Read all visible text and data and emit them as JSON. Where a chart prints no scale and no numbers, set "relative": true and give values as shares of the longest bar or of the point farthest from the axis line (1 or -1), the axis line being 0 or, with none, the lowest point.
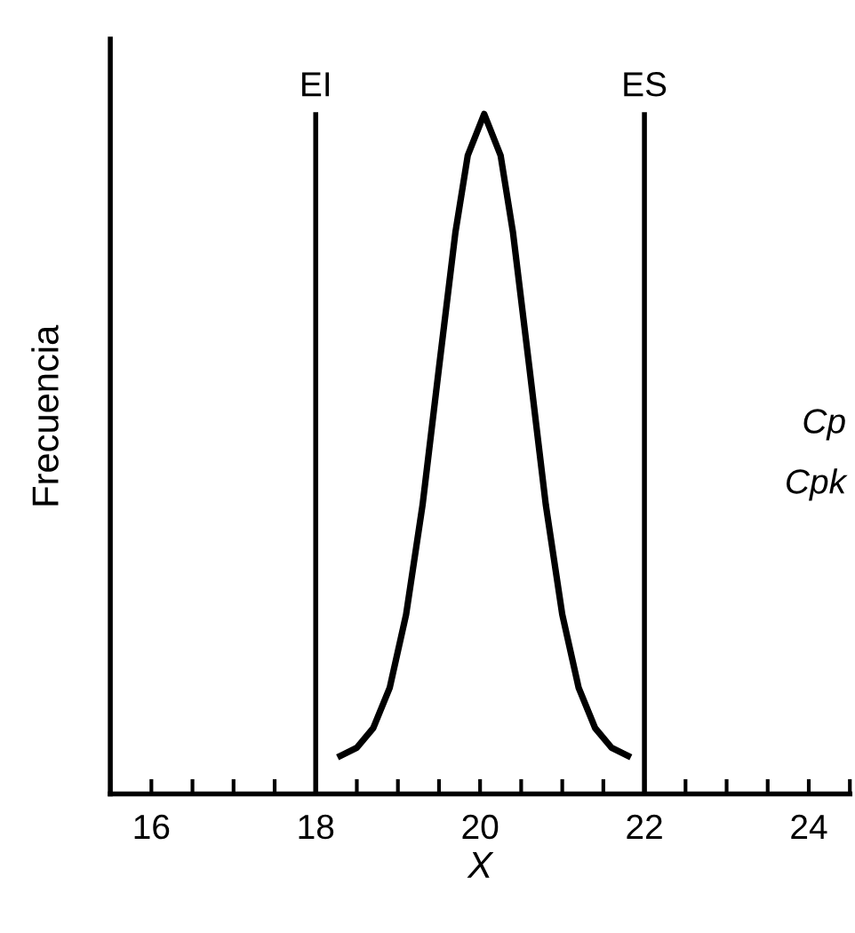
{
  "chart_data": {
    "type": "line",
    "relative": true,
    "xlabel": "X",
    "ylabel": "Frecuencia",
    "x": [
      18.3,
      18.5,
      18.7,
      18.9,
      19.1,
      19.3,
      19.5,
      19.7,
      19.85,
      20.05,
      20.25,
      20.4,
      20.6,
      20.8,
      21.0,
      21.2,
      21.4,
      21.6,
      21.8
    ],
    "series": [
      {
        "color": "#000000",
        "values": [
          0.056,
          0.068,
          0.097,
          0.156,
          0.264,
          0.425,
          0.627,
          0.826,
          0.939,
          1,
          0.939,
          0.826,
          0.627,
          0.425,
          0.264,
          0.156,
          0.097,
          0.068,
          0.056
        ]
      }
    ],
    "xlim": [
      15.5,
      24.5
    ],
    "xticks": [
      {
        "value": 15.5,
        "label": null
      },
      16,
      {
        "value": 16.5,
        "label": null
      },
      {
        "value": 17,
        "label": null
      },
      {
        "value": 17.5,
        "label": null
      },
      18,
      {
        "value": 18.5,
        "label": null
      },
      {
        "value": 19,
        "label": null
      },
      {
        "value": 19.5,
        "label": null
      },
      20,
      {
        "value": 20.5,
        "label": null
      },
      {
        "value": 21,
        "label": null
      },
      {
        "value": 21.5,
        "label": null
      },
      22,
      {
        "value": 22.5,
        "label": null
      },
      {
        "value": 23,
        "label": null
      },
      {
        "value": 23.5,
        "label": null
      },
      24,
      {
        "value": 24.5,
        "label": null
      }
    ],
    "ref_lines": [
      {
        "axis": "x",
        "value": 18,
        "label": "EI",
        "color": "#000000"
      },
      {
        "axis": "x",
        "value": 22,
        "label": "ES",
        "color": "#000000"
      }
    ],
    "annotations": [
      "Cp",
      "Cpk"
    ],
    "tick_labels": "x",
    "grid": false,
    "legend": false,
    "marker": "none",
    "line_style": "solid"
  }
}
